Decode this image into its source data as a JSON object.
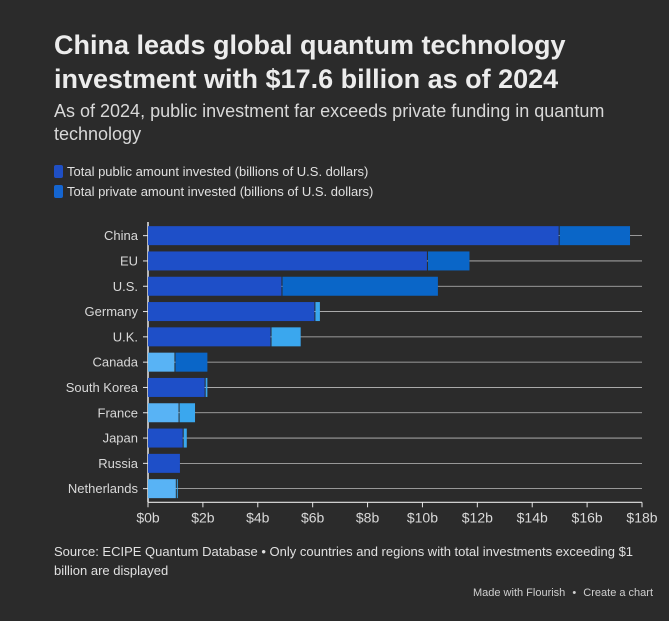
{
  "title": "China leads global quantum technology investment with $17.6 billion as of 2024",
  "subtitle": "As of 2024, public investment far exceeds private funding in quantum technology",
  "legend": [
    {
      "label": "Total public amount invested (billions of U.S. dollars)",
      "color": "#1f4fc4"
    },
    {
      "label": "Total private amount invested (billions of U.S. dollars)",
      "color": "#1565d0"
    }
  ],
  "source": "Source: ECIPE Quantum Database • Only countries and regions with total investments exceeding $1 billion are displayed",
  "credit": {
    "made_with": "Made with Flourish",
    "separator": "•",
    "create": "Create a chart"
  },
  "chart_data": {
    "type": "bar",
    "orientation": "horizontal",
    "stacked": true,
    "categories": [
      "China",
      "EU",
      "U.S.",
      "Germany",
      "U.K.",
      "Canada",
      "South Korea",
      "France",
      "Japan",
      "Russia",
      "Netherlands"
    ],
    "series": [
      {
        "name": "Total public amount invested (billions of U.S. dollars)",
        "values": [
          15.0,
          10.2,
          4.9,
          6.1,
          4.5,
          1.0,
          2.1,
          1.15,
          1.3,
          1.2,
          1.05
        ]
      },
      {
        "name": "Total private amount invested (billions of U.S. dollars)",
        "values": [
          2.6,
          1.55,
          5.7,
          0.2,
          1.1,
          1.2,
          0.1,
          0.6,
          0.15,
          0.0,
          0.05
        ]
      }
    ],
    "segment_colors": [
      [
        "#1e4fc8",
        "#0a66c8"
      ],
      [
        "#1e4fc8",
        "#0a66c8"
      ],
      [
        "#1e4fc8",
        "#0a66c8"
      ],
      [
        "#1e4fc8",
        "#3aa7ee"
      ],
      [
        "#1e4fc8",
        "#3aa7ee"
      ],
      [
        "#58b3f5",
        "#0a66c8"
      ],
      [
        "#1e4fc8",
        "#3aa7ee"
      ],
      [
        "#58b3f5",
        "#3aa7ee"
      ],
      [
        "#1e4fc8",
        "#3aa7ee"
      ],
      [
        "#1e4fc8",
        "#3aa7ee"
      ],
      [
        "#58b3f5",
        "#3aa7ee"
      ]
    ],
    "xlim": [
      0,
      18
    ],
    "xticks": [
      "$0b",
      "$2b",
      "$4b",
      "$6b",
      "$8b",
      "$10b",
      "$12b",
      "$14b",
      "$16b",
      "$18b"
    ],
    "xtick_values": [
      0,
      2,
      4,
      6,
      8,
      10,
      12,
      14,
      16,
      18
    ],
    "grid_color": "#bdbdbd",
    "axis_color": "#e6e6e6",
    "label_color": "#d8d8d8"
  }
}
